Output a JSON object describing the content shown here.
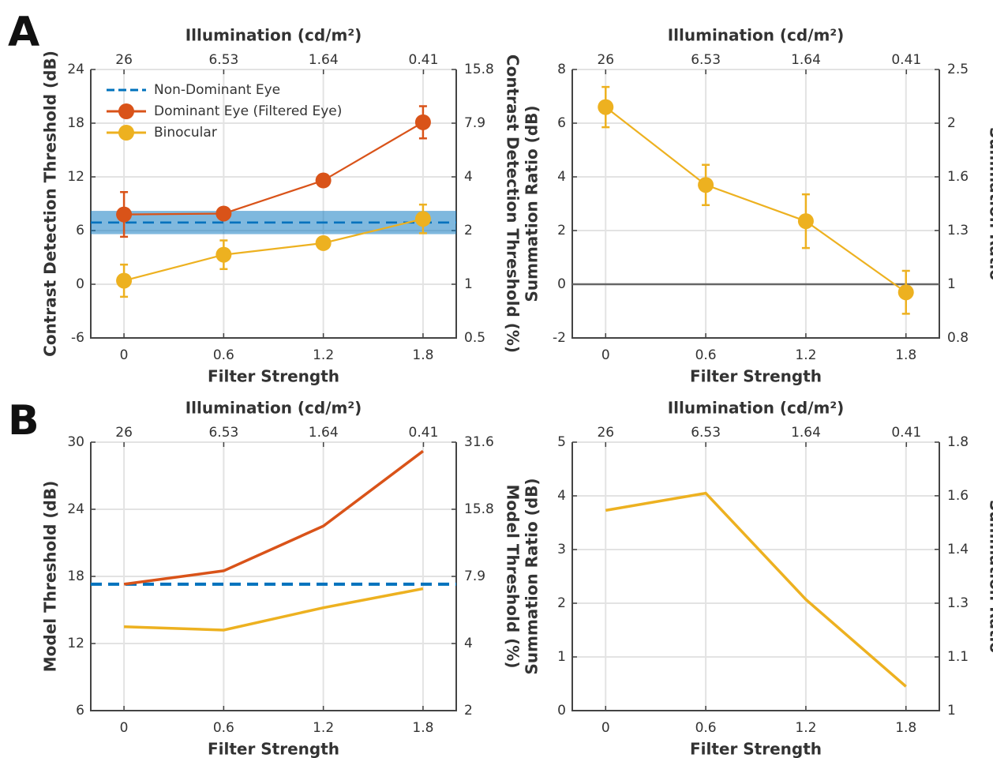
{
  "panel_labels": [
    "A",
    "B"
  ],
  "chart_data": [
    {
      "type": "line",
      "xlabel": "Filter Strength",
      "x2label": "Illumination (cd/m²)",
      "ylabel": "Contrast Detection Threshold (dB)",
      "y2label": "Contrast Detection Threshold (%)",
      "x": [
        0,
        0.6,
        1.2,
        1.8
      ],
      "xlim": [
        -0.2,
        2.0
      ],
      "xticks": [
        0,
        0.6,
        1.2,
        1.8
      ],
      "x2lim": [
        41.21,
        0.2603
      ],
      "x2ticks": [
        26,
        6.53,
        1.64,
        0.41
      ],
      "x2scale": "log",
      "ylim": [
        -6,
        24
      ],
      "yticks": [
        -6,
        0,
        6,
        12,
        18,
        24
      ],
      "y2lim": [
        0.501,
        15.85
      ],
      "y2scale": "log",
      "y2ticks": [
        {
          "value": 0.501,
          "label": "0.5"
        },
        1,
        {
          "value": 1.995,
          "label": "2"
        },
        {
          "value": 3.981,
          "label": "4"
        },
        {
          "value": 7.943,
          "label": "7.9"
        },
        {
          "value": 15.85,
          "label": "15.8"
        }
      ],
      "grid": true,
      "legend": "upper left",
      "markers": true,
      "hlines": [
        {
          "name": "Non-Dominant Eye",
          "color": "#0072bd",
          "value": 6.9,
          "band": [
            5.6,
            8.2
          ],
          "dash": true
        }
      ],
      "series": [
        {
          "name": "Dominant Eye (Filtered Eye)",
          "color": "#d95319",
          "values": [
            7.8,
            7.9,
            11.6,
            18.1
          ],
          "errors": [
            2.5,
            0.3,
            0.6,
            1.8
          ]
        },
        {
          "name": "Binocular",
          "color": "#edb120",
          "values": [
            0.4,
            3.3,
            4.6,
            7.3
          ],
          "errors": [
            1.8,
            1.6,
            0.5,
            1.6
          ]
        }
      ]
    },
    {
      "type": "line",
      "xlabel": "Filter Strength",
      "x2label": "Illumination (cd/m²)",
      "ylabel": "Summation Ratio (dB)",
      "y2label": "Summation Ratio",
      "x": [
        0,
        0.6,
        1.2,
        1.8
      ],
      "xlim": [
        -0.2,
        2.0
      ],
      "xticks": [
        0,
        0.6,
        1.2,
        1.8
      ],
      "x2lim": [
        41.21,
        0.2603
      ],
      "x2ticks": [
        26,
        6.53,
        1.64,
        0.41
      ],
      "x2scale": "log",
      "ylim": [
        -2,
        8
      ],
      "yticks": [
        -2,
        0,
        2,
        4,
        6,
        8
      ],
      "y2lim": [
        0.794,
        2.512
      ],
      "y2scale": "log",
      "y2ticks": [
        {
          "value": 0.794,
          "label": "0.8"
        },
        1,
        {
          "value": 1.259,
          "label": "1.3"
        },
        {
          "value": 1.585,
          "label": "1.6"
        },
        {
          "value": 1.995,
          "label": "2"
        },
        {
          "value": 2.512,
          "label": "2.5"
        }
      ],
      "grid": true,
      "markers": true,
      "hlines": [
        {
          "color": "#666666",
          "value": 0
        }
      ],
      "series": [
        {
          "color": "#edb120",
          "values": [
            6.6,
            3.7,
            2.35,
            -0.3
          ],
          "errors": [
            0.75,
            0.75,
            1.0,
            0.8
          ]
        }
      ]
    },
    {
      "type": "line",
      "xlabel": "Filter Strength",
      "x2label": "Illumination (cd/m²)",
      "ylabel": "Model Threshold (dB)",
      "y2label": "Model Threshold (%)",
      "x": [
        0,
        0.6,
        1.2,
        1.8
      ],
      "xlim": [
        -0.2,
        2.0
      ],
      "xticks": [
        0,
        0.6,
        1.2,
        1.8
      ],
      "x2lim": [
        41.21,
        0.2603
      ],
      "x2ticks": [
        26,
        6.53,
        1.64,
        0.41
      ],
      "x2scale": "log",
      "ylim": [
        6,
        30
      ],
      "yticks": [
        6,
        12,
        18,
        24,
        30
      ],
      "y2lim": [
        1.995,
        31.62
      ],
      "y2scale": "log",
      "y2ticks": [
        {
          "value": 1.995,
          "label": "2"
        },
        {
          "value": 3.981,
          "label": "4"
        },
        {
          "value": 7.943,
          "label": "7.9"
        },
        {
          "value": 15.85,
          "label": "15.8"
        },
        {
          "value": 31.62,
          "label": "31.6"
        }
      ],
      "grid": true,
      "hlines": [
        {
          "color": "#0072bd",
          "value": 17.3,
          "dash": true
        }
      ],
      "series": [
        {
          "color": "#d95319",
          "values": [
            17.3,
            18.5,
            22.5,
            29.2
          ]
        },
        {
          "color": "#edb120",
          "values": [
            13.5,
            13.2,
            15.2,
            16.9
          ]
        }
      ]
    },
    {
      "type": "line",
      "xlabel": "Filter Strength",
      "x2label": "Illumination (cd/m²)",
      "ylabel": "Summation Ratio (dB)",
      "y2label": "Summation Ratio",
      "x": [
        0,
        0.6,
        1.2,
        1.8
      ],
      "xlim": [
        -0.2,
        2.0
      ],
      "xticks": [
        0,
        0.6,
        1.2,
        1.8
      ],
      "x2lim": [
        41.21,
        0.2603
      ],
      "x2ticks": [
        26,
        6.53,
        1.64,
        0.41
      ],
      "x2scale": "log",
      "ylim": [
        0,
        5
      ],
      "yticks": [
        0,
        1,
        2,
        3,
        4,
        5
      ],
      "y2lim": [
        1,
        1.778
      ],
      "y2scale": "log",
      "y2ticks": [
        1,
        {
          "value": 1.122,
          "label": "1.1"
        },
        {
          "value": 1.259,
          "label": "1.3"
        },
        {
          "value": 1.413,
          "label": "1.4"
        },
        {
          "value": 1.585,
          "label": "1.6"
        },
        {
          "value": 1.778,
          "label": "1.8"
        }
      ],
      "grid": true,
      "series": [
        {
          "color": "#edb120",
          "values": [
            3.73,
            4.05,
            2.07,
            0.45
          ]
        }
      ]
    }
  ]
}
